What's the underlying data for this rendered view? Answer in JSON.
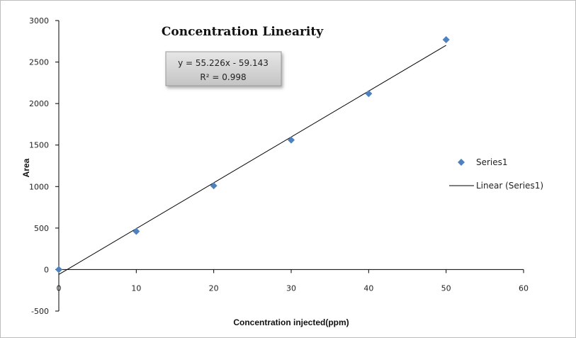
{
  "chart_data": {
    "type": "scatter",
    "title": "Concentration Linearity",
    "xlabel": "Concentration injected(ppm)",
    "ylabel": "Area",
    "xlim": [
      0,
      60
    ],
    "ylim": [
      -500,
      3000
    ],
    "xticks": [
      0,
      10,
      20,
      30,
      40,
      50,
      60
    ],
    "yticks": [
      -500,
      0,
      500,
      1000,
      1500,
      2000,
      2500,
      3000
    ],
    "grid": false,
    "legend_position": "right",
    "series": [
      {
        "name": "Series1",
        "marker": "diamond",
        "color": "#4f81bd",
        "points": [
          {
            "x": 0,
            "y": 0
          },
          {
            "x": 10,
            "y": 460
          },
          {
            "x": 20,
            "y": 1010
          },
          {
            "x": 30,
            "y": 1560
          },
          {
            "x": 40,
            "y": 2120
          },
          {
            "x": 50,
            "y": 2770
          }
        ]
      }
    ],
    "trendline": {
      "name": "Linear (Series1)",
      "type": "linear",
      "slope": 55.226,
      "intercept": -59.143,
      "color": "#000000",
      "x_range": [
        0,
        50
      ],
      "equation": "y = 55.226x - 59.143",
      "r_squared": "R² = 0.998"
    }
  }
}
